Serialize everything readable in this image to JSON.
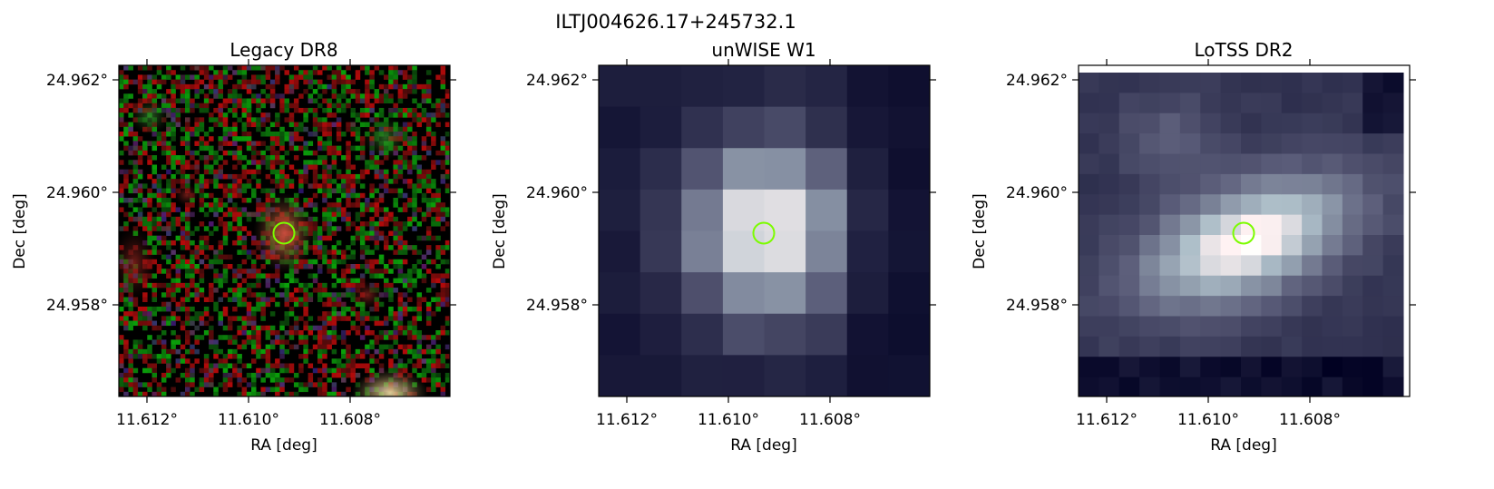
{
  "figure": {
    "suptitle": "ILTJ004626.17+245732.1"
  },
  "panels": [
    {
      "title": "Legacy DR8",
      "xlabel": "RA [deg]",
      "ylabel": "Dec [deg]",
      "xticks": [
        "11.612°",
        "11.610°",
        "11.608°"
      ],
      "yticks": [
        "24.962°",
        "24.960°",
        "24.958°"
      ],
      "image_style": "optical color composite, dark background with red/green noise, faint extended source at center, bright blob at bottom-right"
    },
    {
      "title": "unWISE W1",
      "xlabel": "RA [deg]",
      "ylabel": "Dec [deg]",
      "xticks": [
        "11.612°",
        "11.610°",
        "11.608°"
      ],
      "yticks": [
        "24.962°",
        "24.960°",
        "24.958°"
      ],
      "image_style": "infrared, bone colormap, coarse pixels, bright source at center"
    },
    {
      "title": "LoTSS DR2",
      "xlabel": "RA [deg]",
      "ylabel": "Dec [deg]",
      "xticks": [
        "11.612°",
        "11.610°",
        "11.608°"
      ],
      "yticks": [
        "24.962°",
        "24.960°",
        "24.958°"
      ],
      "image_style": "radio, bone colormap, extended elongated emission through center"
    }
  ],
  "marker": {
    "shape": "circle",
    "color": "#7CFC00"
  }
}
